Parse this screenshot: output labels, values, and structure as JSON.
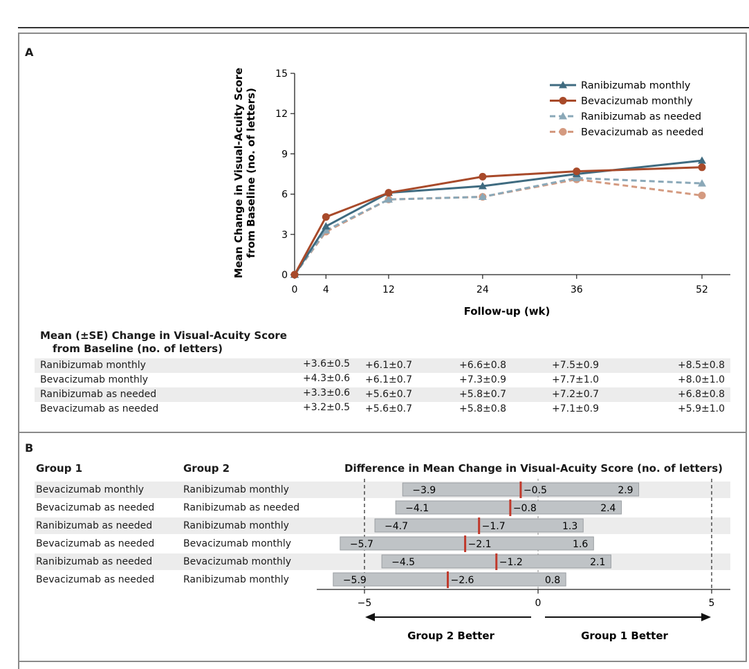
{
  "panel_a": {
    "letter": "A",
    "chart_data": {
      "type": "line",
      "x": [
        0,
        4,
        12,
        24,
        36,
        52
      ],
      "xlabel": "Follow-up (wk)",
      "ylabel_line1": "Mean Change in Visual-Acuity Score",
      "ylabel_line2": "from Baseline (no. of letters)",
      "xticks": [
        "0",
        "4",
        "12",
        "24",
        "36",
        "52"
      ],
      "yticks": [
        "0",
        "3",
        "6",
        "9",
        "12",
        "15"
      ],
      "ylim": [
        0,
        15
      ],
      "xlim": [
        0,
        55
      ],
      "legend_position": "top-right",
      "series": [
        {
          "name": "Ranibizumab monthly",
          "values": [
            0,
            3.6,
            6.1,
            6.6,
            7.5,
            8.5
          ],
          "color": "#3f6b80",
          "marker": "triangle",
          "dashed": false
        },
        {
          "name": "Bevacizumab monthly",
          "values": [
            0,
            4.3,
            6.1,
            7.3,
            7.7,
            8.0
          ],
          "color": "#a84a2a",
          "marker": "circle",
          "dashed": false
        },
        {
          "name": "Ranibizumab as needed",
          "values": [
            0,
            3.3,
            5.6,
            5.8,
            7.2,
            6.8
          ],
          "color": "#8aa8b8",
          "marker": "triangle",
          "dashed": true
        },
        {
          "name": "Bevacizumab as needed",
          "values": [
            0,
            3.2,
            5.6,
            5.8,
            7.1,
            5.9
          ],
          "color": "#d49a80",
          "marker": "circle",
          "dashed": true
        }
      ]
    },
    "table": {
      "title_line1": "Mean (±SE) Change in Visual-Acuity Score",
      "title_line2": "from Baseline (no. of letters)",
      "rows": [
        {
          "label": "Ranibizumab monthly",
          "values": [
            "+3.6±0.5",
            "+6.1±0.7",
            "+6.6±0.8",
            "+7.5±0.9",
            "+8.5±0.8"
          ]
        },
        {
          "label": "Bevacizumab monthly",
          "values": [
            "+4.3±0.6",
            "+6.1±0.7",
            "+7.3±0.9",
            "+7.7±1.0",
            "+8.0±1.0"
          ]
        },
        {
          "label": "Ranibizumab as needed",
          "values": [
            "+3.3±0.6",
            "+5.6±0.7",
            "+5.8±0.7",
            "+7.2±0.7",
            "+6.8±0.8"
          ]
        },
        {
          "label": "Bevacizumab as needed",
          "values": [
            "+3.2±0.5",
            "+5.6±0.7",
            "+5.8±0.8",
            "+7.1±0.9",
            "+5.9±1.0"
          ]
        }
      ]
    }
  },
  "panel_b": {
    "letter": "B",
    "header_group1": "Group 1",
    "header_group2": "Group 2",
    "header_diff": "Difference in Mean Change in Visual-Acuity Score (no. of letters)",
    "chart_data": {
      "type": "bar",
      "xlim": [
        -6,
        5.5
      ],
      "xticks": [
        "−5",
        "0",
        "5"
      ],
      "reference_lines": [
        -5,
        5
      ],
      "rows": [
        {
          "group1": "Bevacizumab monthly",
          "group2": "Ranibizumab monthly",
          "low": -3.9,
          "mid": -0.5,
          "high": 2.9,
          "low_label": "−3.9",
          "mid_label": "−0.5",
          "high_label": "2.9"
        },
        {
          "group1": "Bevacizumab as needed",
          "group2": "Ranibizumab as needed",
          "low": -4.1,
          "mid": -0.8,
          "high": 2.4,
          "low_label": "−4.1",
          "mid_label": "−0.8",
          "high_label": "2.4"
        },
        {
          "group1": "Ranibizumab as needed",
          "group2": "Ranibizumab monthly",
          "low": -4.7,
          "mid": -1.7,
          "high": 1.3,
          "low_label": "−4.7",
          "mid_label": "−1.7",
          "high_label": "1.3"
        },
        {
          "group1": "Bevacizumab as needed",
          "group2": "Bevacizumab monthly",
          "low": -5.7,
          "mid": -2.1,
          "high": 1.6,
          "low_label": "−5.7",
          "mid_label": "−2.1",
          "high_label": "1.6"
        },
        {
          "group1": "Ranibizumab as needed",
          "group2": "Bevacizumab monthly",
          "low": -4.5,
          "mid": -1.2,
          "high": 2.1,
          "low_label": "−4.5",
          "mid_label": "−1.2",
          "high_label": "2.1"
        },
        {
          "group1": "Bevacizumab as needed",
          "group2": "Ranibizumab monthly",
          "low": -5.9,
          "mid": -2.6,
          "high": 0.8,
          "low_label": "−5.9",
          "mid_label": "−2.6",
          "high_label": "0.8"
        }
      ],
      "left_arrow_label": "Group 2 Better",
      "right_arrow_label": "Group 1 Better",
      "bar_color": "#bfc3c6",
      "mid_color": "#c0392b"
    }
  }
}
